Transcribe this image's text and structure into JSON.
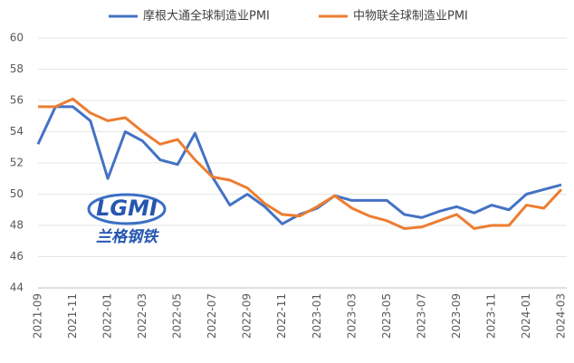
{
  "chart_data": {
    "type": "line",
    "categories": [
      "2021-09",
      null,
      "2021-11",
      null,
      "2022-01",
      null,
      "2022-03",
      null,
      "2022-05",
      null,
      "2022-07",
      null,
      "2022-09",
      null,
      "2022-11",
      null,
      "2023-01",
      null,
      "2023-03",
      null,
      "2023-05",
      null,
      "2023-07",
      null,
      "2023-09",
      null,
      "2023-11",
      null,
      "2024-01",
      null,
      "2024-03"
    ],
    "series": [
      {
        "name": "摩根大通全球制造业PMI",
        "color": "#4472c4",
        "values": [
          53.2,
          55.6,
          55.6,
          54.7,
          51.0,
          54.0,
          53.4,
          52.2,
          51.9,
          53.9,
          51.1,
          49.3,
          50.0,
          49.2,
          48.1,
          48.7,
          49.1,
          49.9,
          49.6,
          49.6,
          49.6,
          48.7,
          48.5,
          48.9,
          49.2,
          48.8,
          49.3,
          49.0,
          50.0,
          50.3,
          50.6
        ]
      },
      {
        "name": "中物联全球制造业PMI",
        "color": "#ed7d31",
        "values": [
          55.6,
          55.6,
          56.1,
          55.2,
          54.7,
          54.9,
          54.0,
          53.2,
          53.5,
          52.2,
          51.1,
          50.9,
          50.4,
          49.4,
          48.7,
          48.6,
          49.2,
          49.9,
          49.1,
          48.6,
          48.3,
          47.8,
          47.9,
          48.3,
          48.7,
          47.8,
          48.0,
          48.0,
          49.3,
          49.1,
          50.3
        ]
      }
    ],
    "ylim": [
      44,
      60
    ],
    "yticks": [
      44,
      46,
      48,
      50,
      52,
      54,
      56,
      58,
      60
    ],
    "grid": true,
    "watermark": {
      "logo": "LGMI",
      "name": "兰格钢铁"
    }
  }
}
